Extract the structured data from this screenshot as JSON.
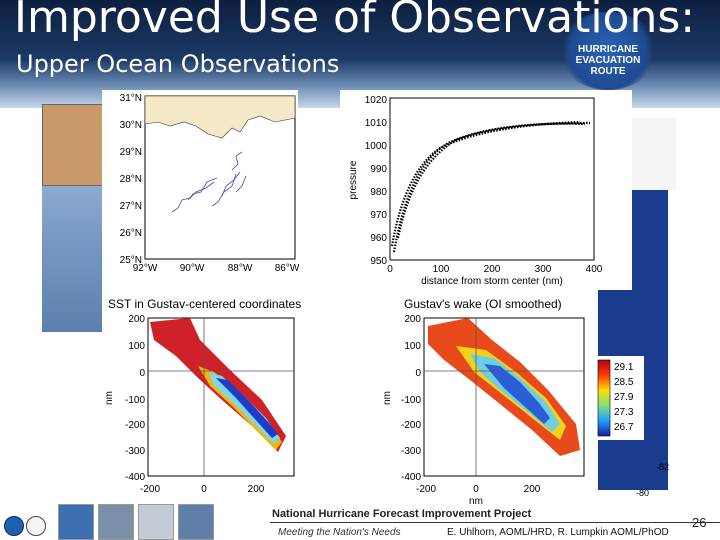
{
  "header": {
    "title": "Improved Use of Observations:",
    "subtitle": "Upper Ocean Observations",
    "sign_text": [
      "HURRICANE",
      "EVACUATION",
      "ROUTE"
    ]
  },
  "map_panel": {
    "lat_labels": [
      "31°N",
      "30°N",
      "29°N",
      "28°N",
      "27°N",
      "26°N",
      "25°N"
    ],
    "lon_labels": [
      "92°W",
      "90°W",
      "88°W",
      "86°W"
    ]
  },
  "pressure_panel": {
    "ylabel": "pressure",
    "xlabel": "distance from storm center (nm)",
    "y_ticks": [
      "1020",
      "1010",
      "1000",
      "990",
      "980",
      "970",
      "960",
      "950"
    ],
    "x_ticks": [
      "0",
      "100",
      "200",
      "300",
      "400"
    ]
  },
  "sst_panel": {
    "title": "SST in Gustav-centered coordinates",
    "ylabel": "nm",
    "y_ticks": [
      "200",
      "100",
      "0",
      "-100",
      "-200",
      "-300",
      "-400"
    ],
    "x_ticks": [
      "-200",
      "0",
      "200"
    ]
  },
  "wake_panel": {
    "title": "Gustav's wake (OI smoothed)",
    "ylabel": "nm",
    "xlabel": "nm",
    "y_ticks": [
      "200",
      "100",
      "0",
      "-100",
      "-200",
      "-300",
      "-400"
    ],
    "x_ticks": [
      "-200",
      "0",
      "200"
    ]
  },
  "colorbar": {
    "labels": [
      "29.1",
      "28.5",
      "27.9",
      "27.3",
      "26.7"
    ]
  },
  "side_labels": [
    "-82",
    "-80"
  ],
  "footer": {
    "project": "National Hurricane Forecast Improvement Project",
    "motto": "Meeting the Nation's Needs",
    "authors": "E. Uhlhorn, AOML/HRD, R. Lumpkin AOML/PhOD",
    "slide_number": "26"
  }
}
